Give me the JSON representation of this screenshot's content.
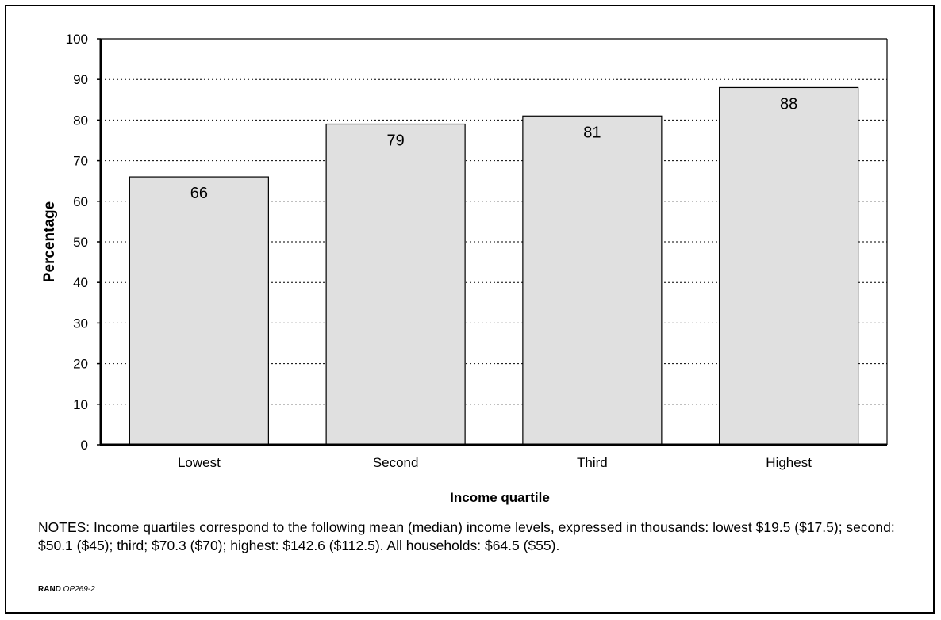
{
  "chart_data": {
    "type": "bar",
    "categories": [
      "Lowest",
      "Second",
      "Third",
      "Highest"
    ],
    "values": [
      66,
      79,
      81,
      88
    ],
    "data_labels": [
      "66",
      "79",
      "81",
      "88"
    ],
    "xlabel": "Income quartile",
    "ylabel": "Percentage",
    "ylim": [
      0,
      100
    ],
    "yticks": [
      0,
      10,
      20,
      30,
      40,
      50,
      60,
      70,
      80,
      90,
      100
    ],
    "grid": "horizontal-dotted",
    "bar_color": "#e0e0e0"
  },
  "notes": "NOTES: Income quartiles correspond to the following mean (median) income levels, expressed in thousands: lowest $19.5 ($17.5); second: $50.1 ($45); third; $70.3 ($70); highest: $142.6 ($112.5). All households: $64.5 ($55).",
  "source": {
    "org": "RAND",
    "id": "OP269-2"
  }
}
